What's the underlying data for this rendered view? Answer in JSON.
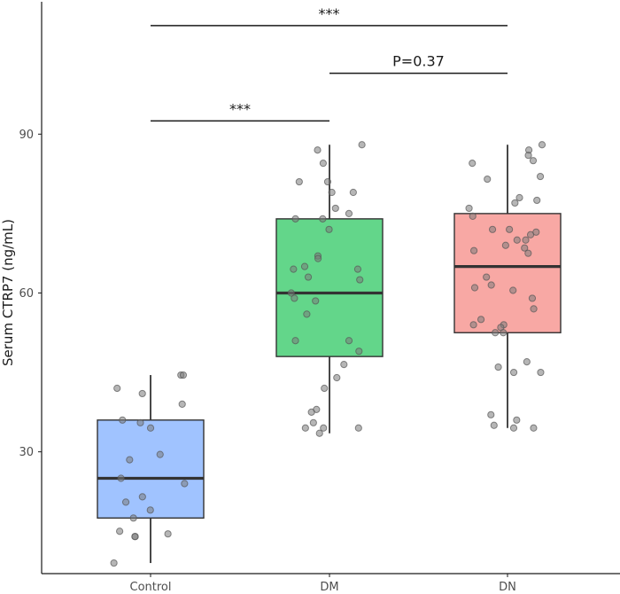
{
  "chart_data": {
    "type": "box",
    "title": "",
    "xlabel": "",
    "ylabel": "Serum CTRP7 (ng/mL)",
    "ylim": [
      7,
      115
    ],
    "yticks": [
      30,
      60,
      90
    ],
    "ytick_labels": [
      "30",
      "60",
      "90"
    ],
    "categories": [
      "Control",
      "DM",
      "DN"
    ],
    "grid": false,
    "legend": "none",
    "boxes": [
      {
        "category": "Control",
        "color": "#a0c3ff",
        "whisker_low": 9,
        "q1": 17.5,
        "median": 25,
        "q3": 36,
        "whisker_high": 44.5,
        "points": [
          44.5,
          44.5,
          42,
          41,
          39,
          36,
          35.5,
          34.5,
          29.5,
          28.5,
          25,
          24,
          21.5,
          20.5,
          19,
          17.5,
          15,
          14.5,
          14,
          14,
          9
        ]
      },
      {
        "category": "DM",
        "color": "#63d68a",
        "whisker_low": 33.5,
        "q1": 48,
        "median": 60,
        "q3": 74,
        "whisker_high": 88,
        "points": [
          88,
          87,
          84.5,
          81,
          81,
          79,
          79,
          76,
          75,
          74,
          74,
          72,
          67,
          66.5,
          65,
          64.5,
          64.5,
          63,
          62.5,
          60,
          59,
          58.5,
          56,
          51,
          51,
          49,
          46.5,
          44,
          42,
          38,
          37.5,
          35.5,
          34.5,
          34.5,
          34.5,
          33.5
        ]
      },
      {
        "category": "DN",
        "color": "#f8a8a4",
        "whisker_low": 34.5,
        "q1": 52.5,
        "median": 65,
        "q3": 75,
        "whisker_high": 88,
        "points": [
          88,
          87,
          86,
          85,
          84.5,
          82,
          81.5,
          78,
          77.5,
          77,
          76,
          74.5,
          72,
          72,
          71.5,
          71,
          70,
          70,
          69,
          68.5,
          68,
          67.5,
          63,
          61.5,
          61,
          60.5,
          59,
          57,
          55,
          54,
          54,
          53.5,
          52.5,
          52.5,
          47,
          46,
          45,
          45,
          37,
          36,
          35,
          34.5,
          34.5
        ]
      }
    ],
    "significance": [
      {
        "from": "Control",
        "to": "DM",
        "y": 92.5,
        "label": "***"
      },
      {
        "from": "DM",
        "to": "DN",
        "y": 101.5,
        "label": "P=0.37"
      },
      {
        "from": "Control",
        "to": "DN",
        "y": 110.5,
        "label": "***"
      }
    ]
  }
}
